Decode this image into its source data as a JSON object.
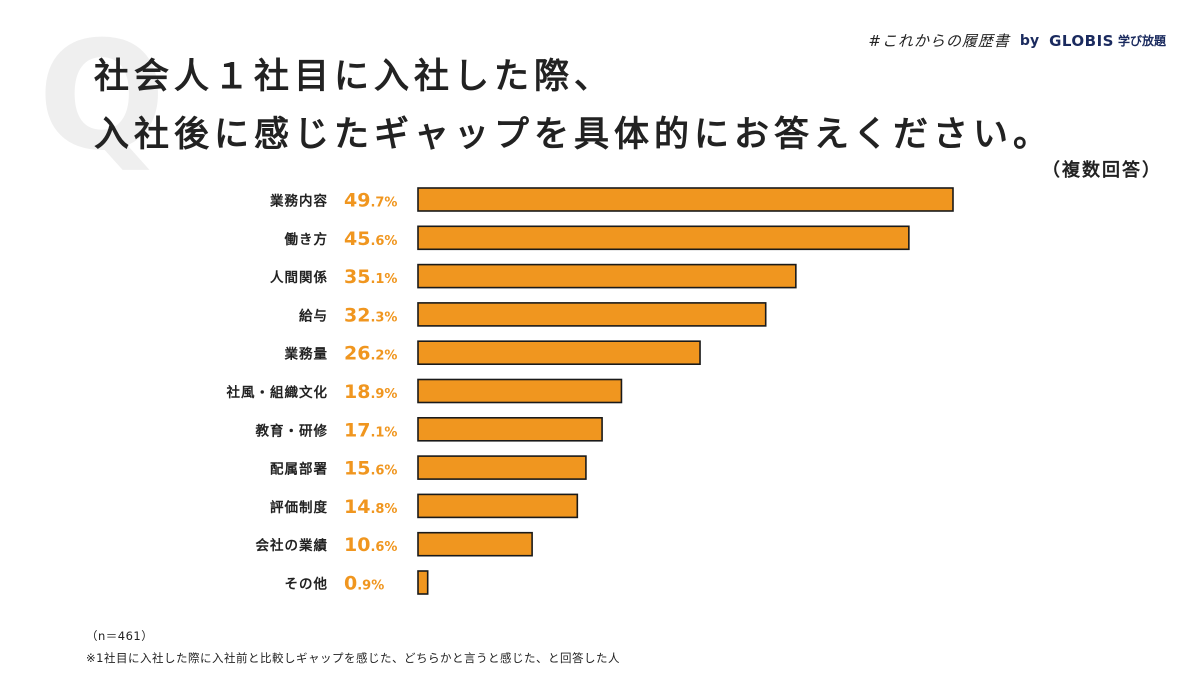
{
  "header": {
    "q_mark": "Q",
    "brand_tag": "#これからの履歴書",
    "brand_by": "by",
    "brand_logo": "GLOBIS",
    "brand_sub": "学び放題"
  },
  "title": {
    "line1": "社会人１社目に入社した際、",
    "line2": "入社後に感じたギャップを具体的にお答えください。",
    "note": "（複数回答）"
  },
  "footer": {
    "sample": "（n＝461）",
    "note": "※1社目に入社した際に入社前と比較しギャップを感じた、どちらかと言うと感じた、と回答した人"
  },
  "colors": {
    "bar": "#f0961f",
    "value_label": "#f0961f"
  },
  "chart_data": {
    "type": "bar",
    "orientation": "horizontal",
    "categories": [
      "業務内容",
      "働き方",
      "人間関係",
      "給与",
      "業務量",
      "社風・組織文化",
      "教育・研修",
      "配属部署",
      "評価制度",
      "会社の業績",
      "その他"
    ],
    "values": [
      49.7,
      45.6,
      35.1,
      32.3,
      26.2,
      18.9,
      17.1,
      15.6,
      14.8,
      10.6,
      0.9
    ],
    "unit": "%",
    "title": "社会人１社目に入社した際、入社後に感じたギャップを具体的にお答えください。",
    "xlabel": "",
    "ylabel": "",
    "xlim": [
      0,
      50
    ],
    "grid": false,
    "legend": "none"
  }
}
